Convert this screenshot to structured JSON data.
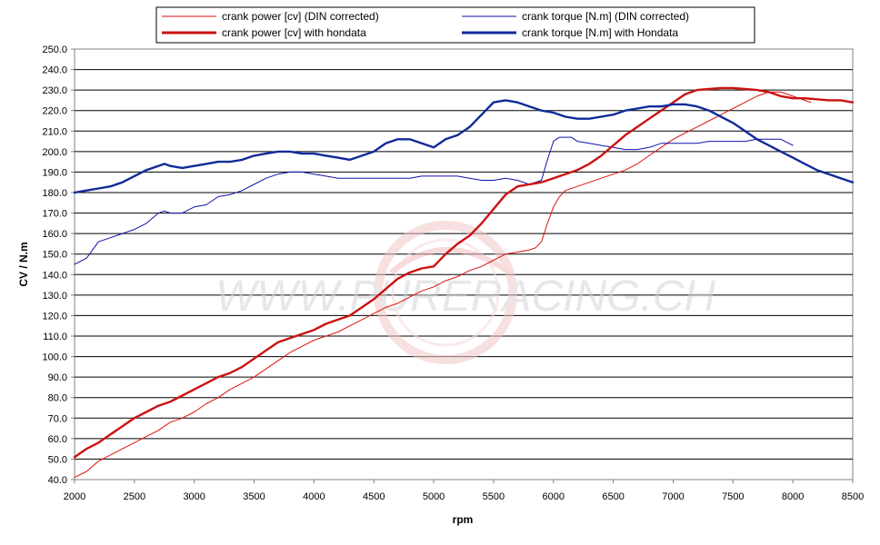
{
  "chart_data": {
    "type": "line",
    "title": "",
    "xlabel": "rpm",
    "ylabel": "CV / N.m",
    "xlim": [
      2000,
      8500
    ],
    "ylim": [
      40,
      250
    ],
    "x_ticks": [
      2000,
      2500,
      3000,
      3500,
      4000,
      4500,
      5000,
      5500,
      6000,
      6500,
      7000,
      7500,
      8000,
      8500
    ],
    "y_ticks": [
      "40.0",
      "50.0",
      "60.0",
      "70.0",
      "80.0",
      "90.0",
      "100.0",
      "110.0",
      "120.0",
      "130.0",
      "140.0",
      "150.0",
      "160.0",
      "170.0",
      "180.0",
      "190.0",
      "200.0",
      "210.0",
      "220.0",
      "230.0",
      "240.0",
      "250.0"
    ],
    "grid": "horizontal",
    "legend_position": "top",
    "watermark": "WWW.PURERACING.CH",
    "series": [
      {
        "name": "crank power [cv] (DIN corrected)",
        "color": "#dd1111",
        "width": "thin",
        "x": [
          2000,
          2100,
          2200,
          2300,
          2400,
          2500,
          2600,
          2700,
          2800,
          2900,
          3000,
          3100,
          3200,
          3300,
          3400,
          3500,
          3600,
          3700,
          3800,
          3900,
          4000,
          4100,
          4200,
          4300,
          4400,
          4500,
          4600,
          4700,
          4800,
          4900,
          5000,
          5100,
          5200,
          5300,
          5400,
          5500,
          5600,
          5700,
          5800,
          5850,
          5900,
          5950,
          6000,
          6050,
          6100,
          6200,
          6300,
          6400,
          6500,
          6600,
          6700,
          6800,
          6900,
          7000,
          7100,
          7200,
          7300,
          7400,
          7500,
          7600,
          7700,
          7800,
          7900,
          8000,
          8150
        ],
        "y": [
          41,
          44,
          49,
          52,
          55,
          58,
          61,
          64,
          68,
          70,
          73,
          77,
          80,
          84,
          87,
          90,
          94,
          98,
          102,
          105,
          108,
          110,
          112,
          115,
          118,
          121,
          124,
          126,
          129,
          132,
          134,
          137,
          139,
          142,
          144,
          147,
          150,
          151,
          152,
          153,
          156,
          165,
          173,
          178,
          181,
          183,
          185,
          187,
          189,
          191,
          194,
          198,
          202,
          206,
          209,
          212,
          215,
          218,
          221,
          224,
          227,
          229,
          229,
          227,
          224
        ]
      },
      {
        "name": "crank torque [N.m] (DIN corrected)",
        "color": "#1111aa",
        "width": "thin",
        "x": [
          2000,
          2100,
          2150,
          2200,
          2300,
          2400,
          2500,
          2600,
          2700,
          2750,
          2800,
          2900,
          3000,
          3100,
          3200,
          3300,
          3400,
          3500,
          3600,
          3700,
          3800,
          3900,
          4000,
          4100,
          4200,
          4300,
          4400,
          4500,
          4600,
          4700,
          4800,
          4900,
          5000,
          5100,
          5200,
          5300,
          5400,
          5500,
          5600,
          5700,
          5800,
          5900,
          5950,
          6000,
          6050,
          6100,
          6150,
          6200,
          6300,
          6400,
          6500,
          6600,
          6700,
          6800,
          6900,
          7000,
          7100,
          7200,
          7300,
          7400,
          7500,
          7600,
          7700,
          7800,
          7900,
          8000
        ],
        "y": [
          145,
          148,
          152,
          156,
          158,
          160,
          162,
          165,
          170,
          171,
          170,
          170,
          173,
          174,
          178,
          179,
          181,
          184,
          187,
          189,
          190,
          190,
          189,
          188,
          187,
          187,
          187,
          187,
          187,
          187,
          187,
          188,
          188,
          188,
          188,
          187,
          186,
          186,
          187,
          186,
          184,
          186,
          196,
          205,
          207,
          207,
          207,
          205,
          204,
          203,
          202,
          201,
          201,
          202,
          204,
          204,
          204,
          204,
          205,
          205,
          205,
          205,
          206,
          206,
          206,
          203
        ]
      },
      {
        "name": "crank power [cv] with hondata",
        "color": "#cc1111",
        "width": "thick",
        "x": [
          2000,
          2100,
          2200,
          2300,
          2400,
          2500,
          2600,
          2700,
          2800,
          2900,
          3000,
          3100,
          3200,
          3300,
          3400,
          3500,
          3600,
          3700,
          3800,
          3900,
          4000,
          4100,
          4200,
          4300,
          4400,
          4500,
          4600,
          4700,
          4800,
          4900,
          5000,
          5100,
          5200,
          5300,
          5400,
          5500,
          5600,
          5700,
          5800,
          5900,
          6000,
          6100,
          6200,
          6300,
          6400,
          6500,
          6600,
          6700,
          6800,
          6900,
          7000,
          7100,
          7200,
          7300,
          7400,
          7500,
          7600,
          7700,
          7800,
          7900,
          8000,
          8100,
          8200,
          8300,
          8400,
          8500
        ],
        "y": [
          51,
          55,
          58,
          62,
          66,
          70,
          73,
          76,
          78,
          81,
          84,
          87,
          90,
          92,
          95,
          99,
          103,
          107,
          109,
          111,
          113,
          116,
          118,
          120,
          124,
          128,
          133,
          138,
          141,
          143,
          144,
          150,
          155,
          159,
          165,
          172,
          179,
          183,
          184,
          185,
          187,
          189,
          191,
          194,
          198,
          203,
          208,
          212,
          216,
          220,
          224,
          228,
          230,
          230.5,
          231,
          231,
          230.5,
          230,
          229,
          227,
          226,
          226,
          225.5,
          225,
          225,
          224
        ]
      },
      {
        "name": "crank torque [N.m] with Hondata",
        "color": "#102a99",
        "width": "thick",
        "x": [
          2000,
          2100,
          2200,
          2300,
          2400,
          2500,
          2600,
          2700,
          2750,
          2800,
          2900,
          3000,
          3100,
          3200,
          3300,
          3400,
          3500,
          3600,
          3700,
          3800,
          3900,
          4000,
          4100,
          4200,
          4300,
          4400,
          4500,
          4600,
          4700,
          4800,
          4900,
          5000,
          5100,
          5200,
          5300,
          5400,
          5500,
          5600,
          5700,
          5800,
          5900,
          6000,
          6100,
          6200,
          6300,
          6400,
          6500,
          6600,
          6700,
          6800,
          6900,
          7000,
          7100,
          7200,
          7300,
          7400,
          7500,
          7600,
          7700,
          7800,
          7900,
          8000,
          8100,
          8200,
          8300,
          8400,
          8500
        ],
        "y": [
          180,
          181,
          182,
          183,
          185,
          188,
          191,
          193,
          194,
          193,
          192,
          193,
          194,
          195,
          195,
          196,
          198,
          199,
          200,
          200,
          199,
          199,
          198,
          197,
          196,
          198,
          200,
          204,
          206,
          206,
          204,
          202,
          206,
          208,
          212,
          218,
          224,
          225,
          224,
          222,
          220,
          219,
          217,
          216,
          216,
          217,
          218,
          220,
          221,
          222,
          222,
          223,
          223,
          222,
          220,
          217,
          214,
          210,
          206,
          203,
          200,
          197,
          194,
          191,
          189,
          187,
          185
        ]
      }
    ]
  }
}
